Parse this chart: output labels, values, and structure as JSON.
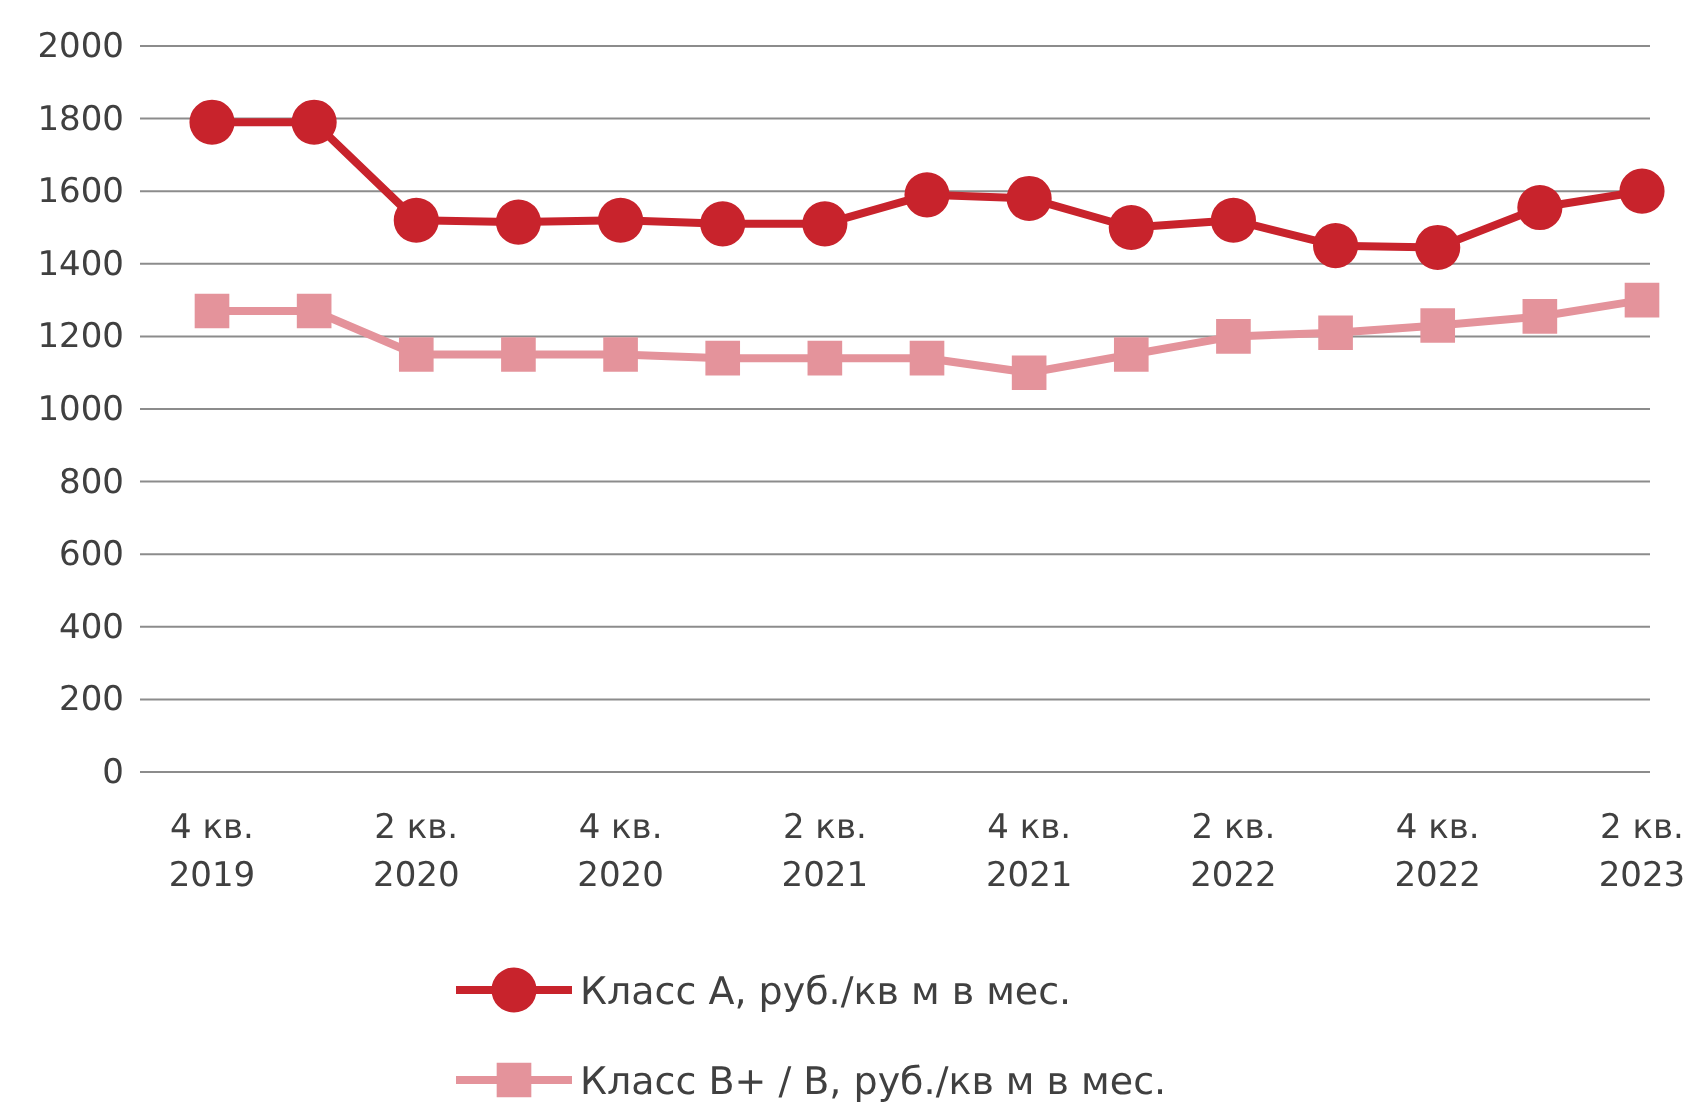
{
  "chart_data": {
    "type": "line",
    "categories": [
      "4 кв. 2019",
      null,
      "2 кв. 2020",
      null,
      "4 кв. 2020",
      null,
      "2 кв. 2021",
      null,
      "4 кв. 2021",
      null,
      "2 кв. 2022",
      null,
      "4 кв. 2022",
      null,
      "2 кв. 2023"
    ],
    "series": [
      {
        "name": "Класс А, руб./кв м в мес.",
        "color": "#c8232c",
        "marker": "circle",
        "values": [
          1790,
          1790,
          1520,
          1515,
          1520,
          1510,
          1510,
          1590,
          1580,
          1500,
          1520,
          1450,
          1445,
          1555,
          1600
        ]
      },
      {
        "name": "Класс В+ / В, руб./кв м в мес.",
        "color": "#e4939b",
        "marker": "square",
        "values": [
          1270,
          1270,
          1150,
          1150,
          1150,
          1140,
          1140,
          1140,
          1100,
          1150,
          1200,
          1210,
          1230,
          1255,
          1300
        ]
      }
    ],
    "ylim": [
      0,
      2000
    ],
    "yticks": [
      0,
      200,
      400,
      600,
      800,
      1000,
      1200,
      1400,
      1600,
      1800,
      2000
    ],
    "grid": "y",
    "legend": "bottom"
  }
}
